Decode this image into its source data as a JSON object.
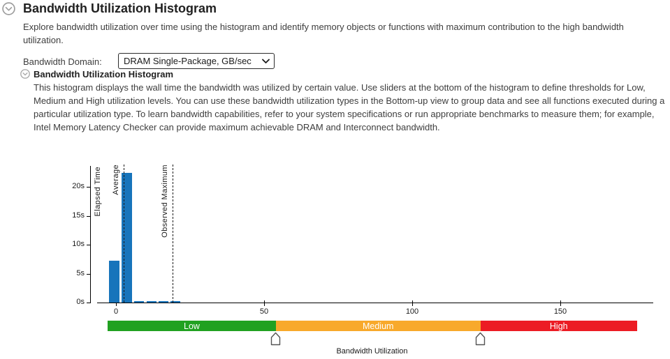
{
  "page": {
    "title": "Bandwidth Utilization Histogram",
    "description": "Explore bandwidth utilization over time using the histogram and identify memory objects or functions with maximum contribution to the high bandwidth utilization."
  },
  "bandwidth_domain": {
    "label": "Bandwidth Domain:",
    "selected": "DRAM Single-Package, GB/sec"
  },
  "section": {
    "title": "Bandwidth Utilization Histogram",
    "description": "This histogram displays the wall time the bandwidth was utilized by certain value. Use sliders at the bottom of the histogram to define thresholds for Low, Medium and High utilization levels. You can use these bandwidth utilization types in the Bottom-up view to group data and see all functions executed during a particular utilization type. To learn bandwidth capabilities, refer to your system specifications or run appropriate benchmarks to measure them; for example, Intel Memory Latency Checker can provide maximum achievable DRAM and Interconnect bandwidth."
  },
  "chart_data": {
    "type": "bar",
    "title": "Bandwidth Utilization Histogram",
    "xlabel": "Bandwidth Utilization",
    "ylabel": "Elapsed Time",
    "x_ticks": [
      0,
      50,
      100,
      150
    ],
    "y_ticks": [
      "0s",
      "5s",
      "10s",
      "15s",
      "20s"
    ],
    "xlim": [
      -6,
      181
    ],
    "ylim": [
      0,
      24
    ],
    "bar_color": "#1774BB",
    "bars": [
      {
        "x": -2.3,
        "width_gb": 3.6,
        "height_s": 7.3
      },
      {
        "x": 1.9,
        "width_gb": 3.6,
        "height_s": 22.5
      },
      {
        "x": 6.1,
        "width_gb": 3.4,
        "height_s": 0.3
      },
      {
        "x": 10.3,
        "width_gb": 3.3,
        "height_s": 0.3
      },
      {
        "x": 14.4,
        "width_gb": 3.3,
        "height_s": 0.3
      },
      {
        "x": 18.4,
        "width_gb": 3.4,
        "height_s": 0.3
      }
    ],
    "annotations": [
      {
        "label": "Average",
        "x": 2.6
      },
      {
        "label": "Observed Maximum",
        "x": 19.1
      }
    ],
    "thresholds": {
      "low_max": 54,
      "high_min": 123
    },
    "zones": [
      {
        "label": "Low",
        "color": "#21A121"
      },
      {
        "label": "Medium",
        "color": "#F8A92B"
      },
      {
        "label": "High",
        "color": "#EC1C24"
      }
    ],
    "grid": false,
    "legend": "none"
  },
  "colors": {
    "icon_gray": "#9E9E9E"
  }
}
